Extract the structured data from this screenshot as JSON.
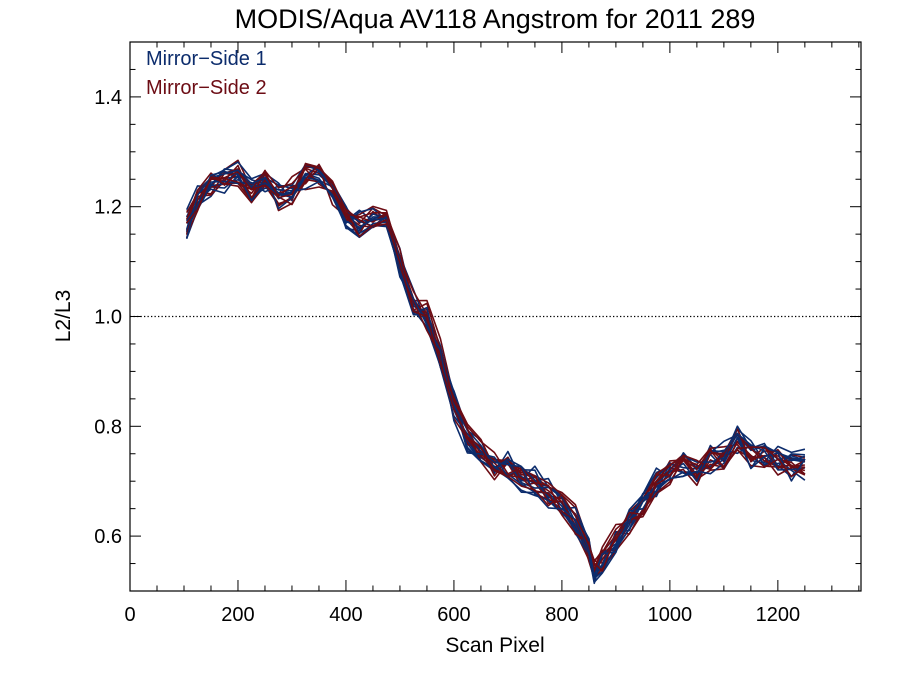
{
  "chart_data": {
    "type": "line",
    "title": "MODIS/Aqua AV118 Angstrom for 2011 289",
    "xlabel": "Scan Pixel",
    "ylabel": "L2/L3",
    "xlim": [
      0,
      1354
    ],
    "ylim": [
      0.5,
      1.5
    ],
    "x_ticks": [
      0,
      200,
      400,
      600,
      800,
      1000,
      1200
    ],
    "y_ticks": [
      0.6,
      0.8,
      1.0,
      1.2,
      1.4
    ],
    "x_tick_labels": [
      "0",
      "200",
      "400",
      "600",
      "800",
      "1000",
      "1200"
    ],
    "y_tick_labels": [
      "0.6",
      "0.8",
      "1.0",
      "1.2",
      "1.4"
    ],
    "x_minor_step": 50,
    "y_minor_step": 0.05,
    "reference_line": {
      "y": 1.0,
      "style": "dotted"
    },
    "legend_position": "top-left",
    "series": [
      {
        "name": "Mirror−Side 1",
        "color": "#0c2c6c",
        "line_count": 10
      },
      {
        "name": "Mirror−Side 2",
        "color": "#6c0c14",
        "line_count": 10
      }
    ],
    "x": [
      105,
      125,
      150,
      175,
      200,
      225,
      250,
      275,
      300,
      325,
      350,
      375,
      400,
      425,
      450,
      475,
      500,
      525,
      550,
      575,
      600,
      625,
      650,
      675,
      700,
      725,
      750,
      775,
      800,
      825,
      850,
      860,
      875,
      900,
      925,
      950,
      975,
      1000,
      1025,
      1050,
      1075,
      1100,
      1125,
      1150,
      1175,
      1200,
      1225,
      1250
    ],
    "mean_profile": [
      1.17,
      1.22,
      1.24,
      1.25,
      1.26,
      1.23,
      1.25,
      1.22,
      1.23,
      1.26,
      1.26,
      1.23,
      1.18,
      1.17,
      1.18,
      1.18,
      1.1,
      1.03,
      1.0,
      0.93,
      0.84,
      0.78,
      0.75,
      0.73,
      0.73,
      0.71,
      0.7,
      0.68,
      0.66,
      0.63,
      0.58,
      0.54,
      0.56,
      0.6,
      0.63,
      0.66,
      0.7,
      0.72,
      0.73,
      0.72,
      0.74,
      0.75,
      0.78,
      0.75,
      0.75,
      0.74,
      0.73,
      0.73
    ]
  }
}
